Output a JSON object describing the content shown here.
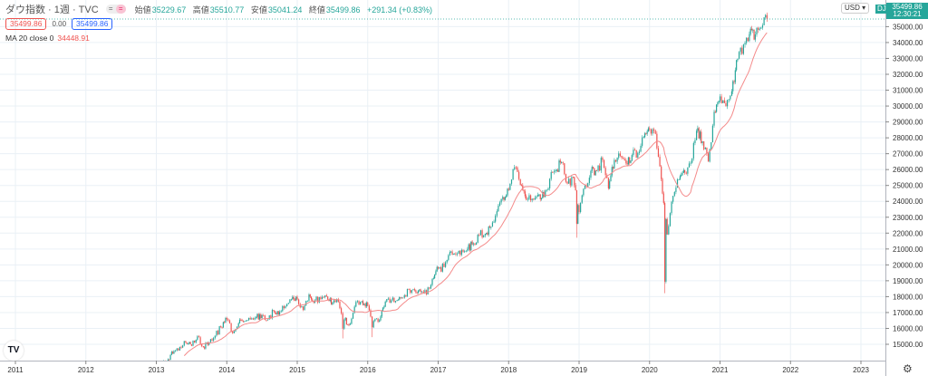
{
  "header": {
    "symbol": "ダウ指数 · 1週 · TVC",
    "toggle_left": "=",
    "toggle_right": "=",
    "open_label": "始値",
    "open": "35229.67",
    "high_label": "高値",
    "high": "35510.77",
    "low_label": "安値",
    "low": "35041.24",
    "close_label": "終値",
    "close": "35499.86",
    "change": "+291.34 (+0.83%)",
    "sell": "35499.86",
    "spread": "0.00",
    "buy": "35499.86",
    "ma_label": "MA 20 close 0",
    "ma_value": "34448.91"
  },
  "price_axis": {
    "currency": "USD",
    "last_price": "35499.86",
    "countdown": "12:30:21",
    "symbol_tag": "DJI"
  },
  "colors": {
    "up": "#26a69a",
    "down": "#ef5350",
    "ma": "#f48a8a",
    "grid": "#eaf0f6",
    "last": "#26a69a"
  },
  "logo": "TV",
  "settings_icon": "gear-icon",
  "chart_data": {
    "type": "candlestick",
    "interval": "1W",
    "grid": true,
    "ylim": [
      14000,
      36000
    ],
    "y_ticks": [
      "15000.00",
      "16000.00",
      "17000.00",
      "18000.00",
      "19000.00",
      "20000.00",
      "21000.00",
      "22000.00",
      "23000.00",
      "24000.00",
      "25000.00",
      "26000.00",
      "27000.00",
      "28000.00",
      "29000.00",
      "30000.00",
      "31000.00",
      "32000.00",
      "33000.00",
      "34000.00",
      "35000.00"
    ],
    "x_ticks": [
      "2011",
      "2012",
      "2013",
      "2014",
      "2015",
      "2016",
      "2017",
      "2018",
      "2019",
      "2020",
      "2021",
      "2022",
      "2023"
    ],
    "start_month": "2013-01",
    "monthly_close": [
      13861,
      14054,
      14579,
      14840,
      15116,
      14910,
      15500,
      14810,
      15130,
      15546,
      16086,
      16577,
      15699,
      16322,
      16458,
      16581,
      16717,
      16827,
      16563,
      17098,
      17043,
      17391,
      17828,
      17823,
      17165,
      18133,
      17776,
      17841,
      18011,
      17620,
      17690,
      16528,
      16285,
      17664,
      17720,
      17425,
      16466,
      16517,
      17685,
      17774,
      17787,
      17930,
      18432,
      18401,
      18308,
      18142,
      19124,
      19763,
      19864,
      20812,
      20663,
      20941,
      21009,
      21350,
      21891,
      21948,
      22405,
      23377,
      24272,
      24719,
      26149,
      25029,
      24103,
      24163,
      24416,
      24271,
      25415,
      25965,
      26458,
      25116,
      25538,
      23327,
      24999,
      25916,
      25929,
      26593,
      24815,
      26600,
      26864,
      26403,
      26917,
      27046,
      28051,
      28538,
      28256,
      25409,
      21917,
      24346,
      25383,
      25813,
      26428,
      28430,
      27782,
      26502,
      29639,
      30606,
      29983,
      30932,
      32982,
      33875,
      34529,
      34503,
      34935,
      35500
    ],
    "notable_lows": {
      "2015-08": 15370,
      "2016-01": 15450,
      "2018-12": 21713,
      "2020-03": 18214
    },
    "ma": {
      "period": 20,
      "source": "close"
    },
    "last": 35499.86
  }
}
